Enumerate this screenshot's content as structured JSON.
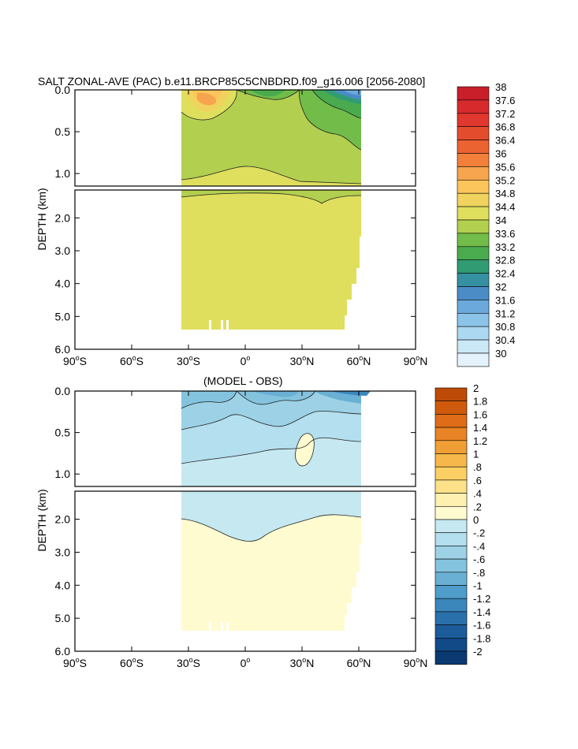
{
  "chart_data": [
    {
      "type": "heatmap",
      "title": "SALT ZONAL-AVE (PAC) b.e11.BRCP85C5CNBDRD.f09_g16.006 [2056-2080]",
      "ylabel": "DEPTH (km)",
      "x_tick_labels": [
        {
          "v": -90,
          "deg": "90",
          "hem": "S"
        },
        {
          "v": -60,
          "deg": "60",
          "hem": "S"
        },
        {
          "v": -30,
          "deg": "30",
          "hem": "S"
        },
        {
          "v": 0,
          "deg": "0",
          "hem": ""
        },
        {
          "v": 30,
          "deg": "30",
          "hem": "N"
        },
        {
          "v": 60,
          "deg": "60",
          "hem": "N"
        },
        {
          "v": 90,
          "deg": "90",
          "hem": "N"
        }
      ],
      "xlim": [
        -90,
        90
      ],
      "y_ticks_upper": [
        "0.0",
        "0.5",
        "1.0"
      ],
      "y_ticks_lower": [
        "2.0",
        "3.0",
        "4.0",
        "5.0",
        "6.0"
      ],
      "ylim_upper": [
        0,
        1.15
      ],
      "ylim_lower": [
        1.15,
        6.0
      ],
      "colorbar_labels": [
        "38",
        "37.6",
        "37.2",
        "36.8",
        "36.4",
        "36",
        "35.6",
        "35.2",
        "34.8",
        "34.4",
        "34",
        "33.6",
        "33.2",
        "32.8",
        "32.4",
        "32",
        "31.6",
        "31.2",
        "30.8",
        "30.4",
        "30"
      ],
      "colorbar_colors": [
        "#c81f2b",
        "#d72a2c",
        "#e0372f",
        "#e34d2e",
        "#ec6332",
        "#f2803a",
        "#f7a44e",
        "#fcc55c",
        "#f0d35e",
        "#dfdf5d",
        "#b3cf4f",
        "#72bd49",
        "#49ab4e",
        "#319b74",
        "#3591a1",
        "#4b8cc7",
        "#6ba9dc",
        "#8cc3e8",
        "#acd8f1",
        "#cbe8f6",
        "#e4f3fb"
      ],
      "field_note": "Salinity field shown over 34S to 62N, surface to bottom"
    },
    {
      "type": "heatmap",
      "title": "(MODEL - OBS)",
      "ylabel": "DEPTH (km)",
      "x_tick_labels": [
        {
          "v": -90,
          "deg": "90",
          "hem": "S"
        },
        {
          "v": -60,
          "deg": "60",
          "hem": "S"
        },
        {
          "v": -30,
          "deg": "30",
          "hem": "S"
        },
        {
          "v": 0,
          "deg": "0",
          "hem": ""
        },
        {
          "v": 30,
          "deg": "30",
          "hem": "N"
        },
        {
          "v": 60,
          "deg": "60",
          "hem": "N"
        },
        {
          "v": 90,
          "deg": "90",
          "hem": "N"
        }
      ],
      "xlim": [
        -90,
        90
      ],
      "y_ticks_upper": [
        "0.0",
        "0.5",
        "1.0"
      ],
      "y_ticks_lower": [
        "2.0",
        "3.0",
        "4.0",
        "5.0",
        "6.0"
      ],
      "ylim_upper": [
        0,
        1.15
      ],
      "ylim_lower": [
        1.15,
        6.0
      ],
      "colorbar_labels": [
        "2",
        "1.8",
        "1.6",
        "1.4",
        "1.2",
        "1",
        ".8",
        ".6",
        ".4",
        ".2",
        "0",
        "-.2",
        "-.4",
        "-.6",
        "-.8",
        "-1",
        "-1.2",
        "-1.4",
        "-1.6",
        "-1.8",
        "-2"
      ],
      "colorbar_colors": [
        "#bd4a07",
        "#cf5a0d",
        "#df6c18",
        "#e88426",
        "#f09f36",
        "#f6b84b",
        "#fbcf63",
        "#fde189",
        "#fef0b0",
        "#fefbd0",
        "#c6e9f1",
        "#b3dfee",
        "#9dd2e6",
        "#84c3de",
        "#69b0d4",
        "#4e9dca",
        "#3b87bc",
        "#2a71ab",
        "#1d5c9a",
        "#124a87",
        "#0b3a72"
      ],
      "field_note": "Difference field shown over 34S to 62N, surface to bottom"
    }
  ]
}
